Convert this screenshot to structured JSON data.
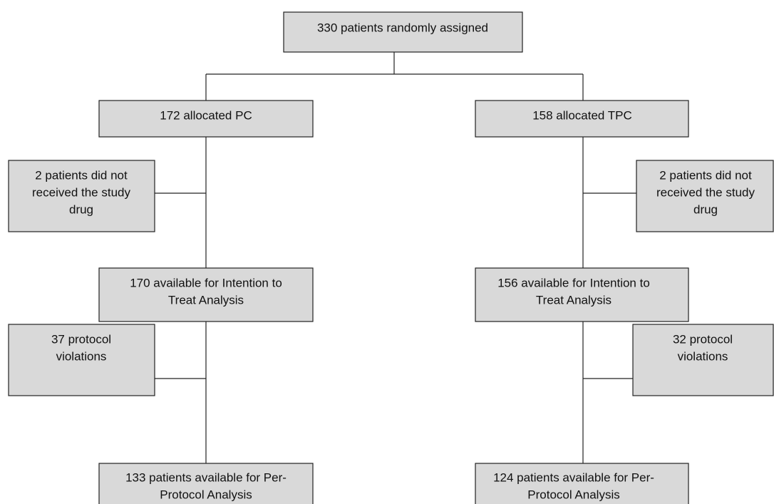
{
  "nodes": [
    {
      "lines": [
        "330 patients randomly assigned"
      ]
    },
    {
      "lines": [
        "172 allocated PC"
      ]
    },
    {
      "lines": [
        "158 allocated TPC"
      ]
    },
    {
      "lines": [
        "2 patients did not",
        "received the study",
        "drug"
      ]
    },
    {
      "lines": [
        "2 patients did not",
        "received the study",
        "drug"
      ]
    },
    {
      "lines": [
        "170 available for Intention to",
        "Treat Analysis"
      ]
    },
    {
      "lines": [
        "156 available for Intention to",
        "Treat Analysis"
      ]
    },
    {
      "lines": [
        "37 protocol",
        "violations"
      ]
    },
    {
      "lines": [
        "32 protocol",
        "violations"
      ]
    },
    {
      "lines": [
        "133 patients available for Per-",
        "Protocol Analysis"
      ]
    },
    {
      "lines": [
        "124 patients available for Per-",
        "Protocol Analysis"
      ]
    }
  ]
}
